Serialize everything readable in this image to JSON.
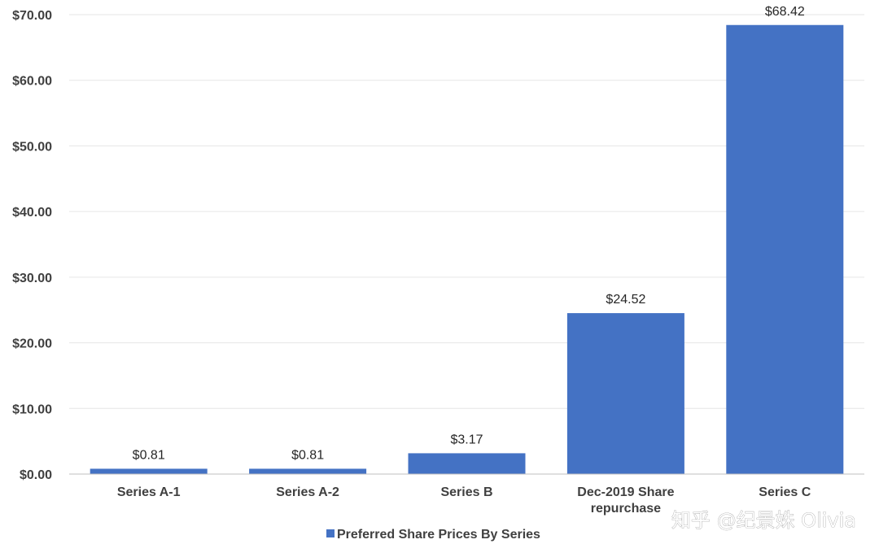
{
  "chart_data": {
    "type": "bar",
    "categories": [
      "Series A-1",
      "Series A-2",
      "Series B",
      "Dec-2019 Share repurchase",
      "Series C"
    ],
    "series": [
      {
        "name": "Preferred Share Prices By Series",
        "values": [
          0.81,
          0.81,
          3.17,
          24.52,
          68.42
        ],
        "data_labels": [
          "$0.81",
          "$0.81",
          "$3.17",
          "$24.52",
          "$68.42"
        ]
      }
    ],
    "y_tick_labels": [
      "$0.00",
      "$10.00",
      "$20.00",
      "$30.00",
      "$40.00",
      "$50.00",
      "$60.00",
      "$70.00"
    ],
    "y_ticks": [
      0,
      10,
      20,
      30,
      40,
      50,
      60,
      70
    ],
    "ylim": [
      0,
      70
    ],
    "grid": true,
    "legend": "bottom",
    "title": "",
    "xlabel": "",
    "ylabel": "",
    "colors": {
      "bar": "#4472C4",
      "grid": "#e6e6e6",
      "axis": "#bfbfbf"
    }
  },
  "watermark": "知乎 @纪景姝 Olivia"
}
